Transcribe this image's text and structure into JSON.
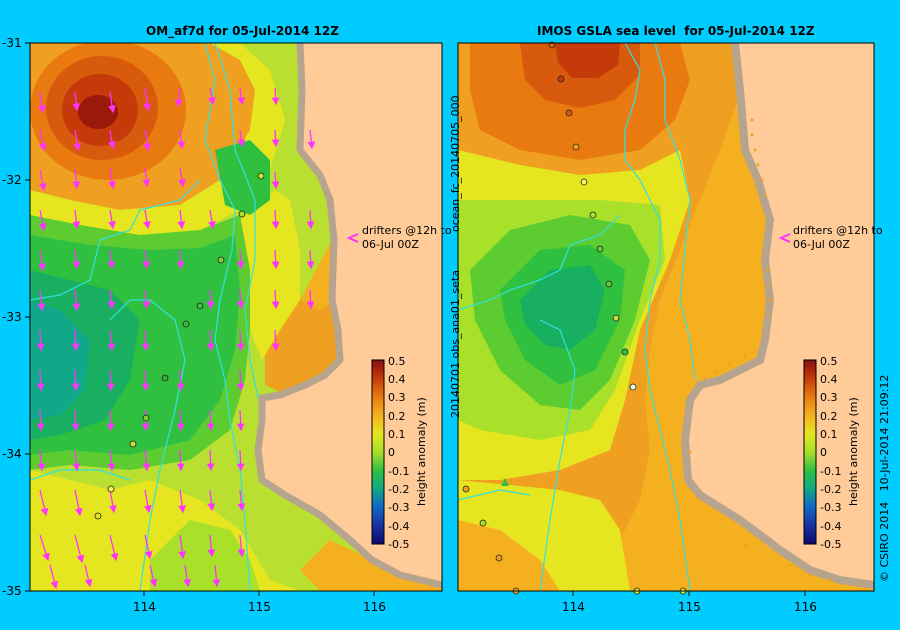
{
  "left_panel": {
    "title": "OM_af7d for 05-Jul-2014 12Z",
    "drifters_note_line1": "drifters @12h to",
    "drifters_note_line2": "06-Jul 00Z"
  },
  "right_panel": {
    "title": "IMOS GSLA sea level  for 05-Jul-2014 12Z",
    "side_label_top": "ocean_fc_20140705_000",
    "side_label_bottom": "20140701 obs_ana01_seta",
    "drifters_note_line1": "drifters @12h to",
    "drifters_note_line2": "06-Jul 00Z"
  },
  "colorbar": {
    "label": "height anomaly (m)",
    "ticks": [
      "0.5",
      "0.4",
      "0.3",
      "0.2",
      "0.1",
      "0",
      "-0.1",
      "-0.2",
      "-0.3",
      "-0.4",
      "-0.5"
    ]
  },
  "y_ticks": [
    "-31",
    "-32",
    "-33",
    "-34",
    "-35"
  ],
  "x_ticks_left": [
    "114",
    "115",
    "116"
  ],
  "x_ticks_right": [
    "114",
    "115",
    "116"
  ],
  "credit": "© CSIRO 2014   10-Jul-2014 21:09:12",
  "colors": {
    "background": "#00ccff",
    "land": "#ffcc99",
    "coast_shelf": "#b7a48e",
    "drifter_arrow": "#ff33ff",
    "isobath": "#33e0e0"
  }
}
